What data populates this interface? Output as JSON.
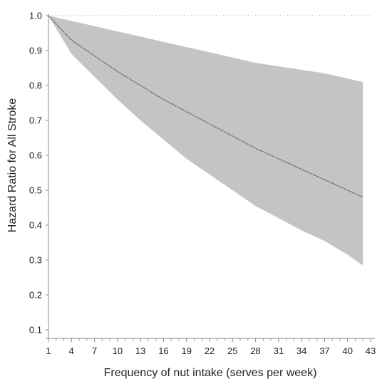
{
  "chart_data": {
    "type": "line",
    "title": "",
    "xlabel": "Frequency of nut intake (serves per week)",
    "ylabel": "Hazard Ratio for All Stroke",
    "xlim": [
      1,
      43
    ],
    "ylim": [
      0.1,
      1.0
    ],
    "x_ticks": [
      "1",
      "4",
      "7",
      "10",
      "13",
      "16",
      "19",
      "22",
      "25",
      "28",
      "31",
      "34",
      "37",
      "40",
      "43"
    ],
    "y_ticks": [
      "0.1",
      "0.2",
      "0.3",
      "0.4",
      "0.5",
      "0.6",
      "0.7",
      "0.8",
      "0.9",
      "1.0"
    ],
    "reference_line": 1.0,
    "grid": false,
    "legend": "none",
    "colors": {
      "band": "#c4c4c4",
      "line": "#555555",
      "reference": "#999999"
    },
    "series": [
      {
        "x": [
          1,
          4,
          7,
          10,
          13,
          16,
          19,
          22,
          25,
          28,
          31,
          34,
          37,
          40,
          42
        ],
        "y": [
          1.0,
          0.93,
          0.885,
          0.84,
          0.8,
          0.76,
          0.725,
          0.69,
          0.655,
          0.62,
          0.59,
          0.56,
          0.53,
          0.5,
          0.48
        ],
        "lower": [
          1.0,
          0.89,
          0.825,
          0.76,
          0.7,
          0.645,
          0.59,
          0.545,
          0.5,
          0.455,
          0.42,
          0.385,
          0.355,
          0.315,
          0.285
        ],
        "upper": [
          1.0,
          0.985,
          0.97,
          0.955,
          0.94,
          0.925,
          0.91,
          0.895,
          0.88,
          0.865,
          0.855,
          0.845,
          0.835,
          0.82,
          0.81
        ]
      }
    ]
  }
}
